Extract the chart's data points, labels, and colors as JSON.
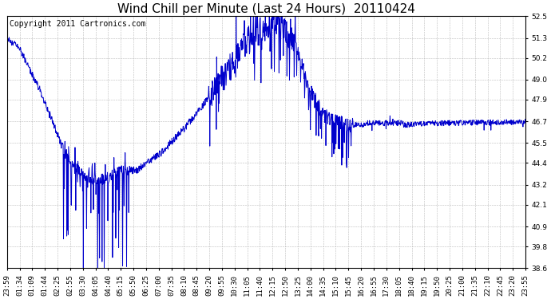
{
  "title": "Wind Chill per Minute (Last 24 Hours)  20110424",
  "copyright_text": "Copyright 2011 Cartronics.com",
  "line_color": "#0000CC",
  "background_color": "#FFFFFF",
  "plot_bg_color": "#FFFFFF",
  "grid_color": "#AAAAAA",
  "ylim": [
    38.6,
    52.5
  ],
  "yticks": [
    38.6,
    39.8,
    40.9,
    42.1,
    43.2,
    44.4,
    45.5,
    46.7,
    47.9,
    49.0,
    50.2,
    51.3,
    52.5
  ],
  "xtick_labels": [
    "23:59",
    "01:34",
    "01:09",
    "01:44",
    "02:25",
    "02:55",
    "03:30",
    "04:05",
    "04:40",
    "05:15",
    "05:50",
    "06:25",
    "07:00",
    "07:35",
    "08:10",
    "08:45",
    "09:20",
    "09:55",
    "10:30",
    "11:05",
    "11:40",
    "12:15",
    "12:50",
    "13:25",
    "14:00",
    "14:35",
    "15:10",
    "15:45",
    "16:20",
    "16:55",
    "17:30",
    "18:05",
    "18:40",
    "19:15",
    "19:50",
    "20:25",
    "21:00",
    "21:35",
    "22:10",
    "22:45",
    "23:20",
    "23:55"
  ],
  "title_fontsize": 11,
  "axis_fontsize": 6.5,
  "copyright_fontsize": 7
}
